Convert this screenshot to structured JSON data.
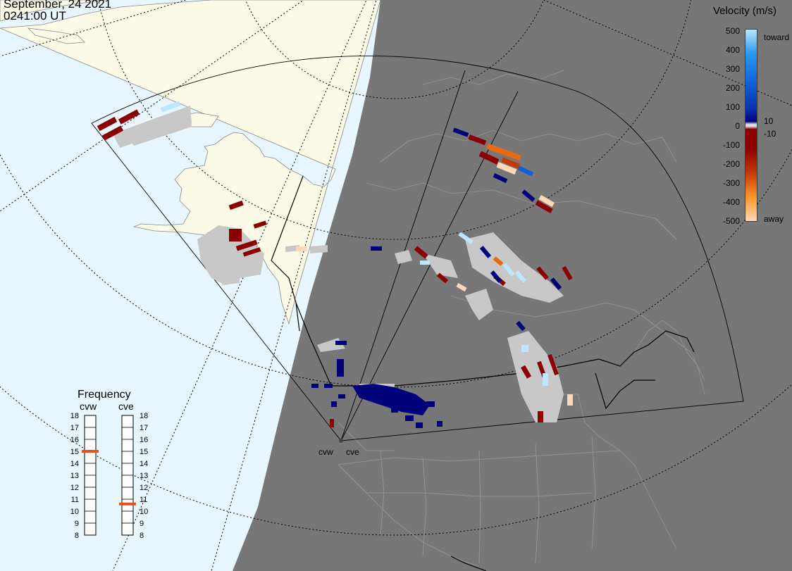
{
  "header": {
    "date": "September, 24 2021",
    "time": "0241:00 UT"
  },
  "velocity_scale": {
    "title": "Velocity (m/s)",
    "ticks": [
      "500",
      "400",
      "300",
      "200",
      "100",
      "0",
      "-100",
      "-200",
      "-300",
      "-400",
      "-500"
    ],
    "inner_ticks": [
      "10",
      "-10"
    ],
    "toward_label": "toward",
    "away_label": "away",
    "colors": [
      "#fdd8b8",
      "#ff9a2e",
      "#e86a10",
      "#c43a08",
      "#8b0000",
      "#e0e0e0",
      "#00007a",
      "#0a2fa8",
      "#1060d8",
      "#2d9cf0",
      "#bfe6ff"
    ]
  },
  "frequency": {
    "title": "Frequency",
    "radars": [
      {
        "name": "cvw",
        "value": 15
      },
      {
        "name": "cve",
        "value": 10.6
      }
    ],
    "ticks": [
      "18",
      "17",
      "16",
      "15",
      "14",
      "13",
      "12",
      "11",
      "10",
      "9",
      "8"
    ],
    "marker_color": "#e8501a"
  },
  "map": {
    "station_labels": [
      "cvw",
      "cve"
    ],
    "colors": {
      "ocean": "#e8f6ff",
      "land": "#fbfbe8",
      "night": "#777777",
      "scatter_gray": "#c8c8c8"
    }
  }
}
